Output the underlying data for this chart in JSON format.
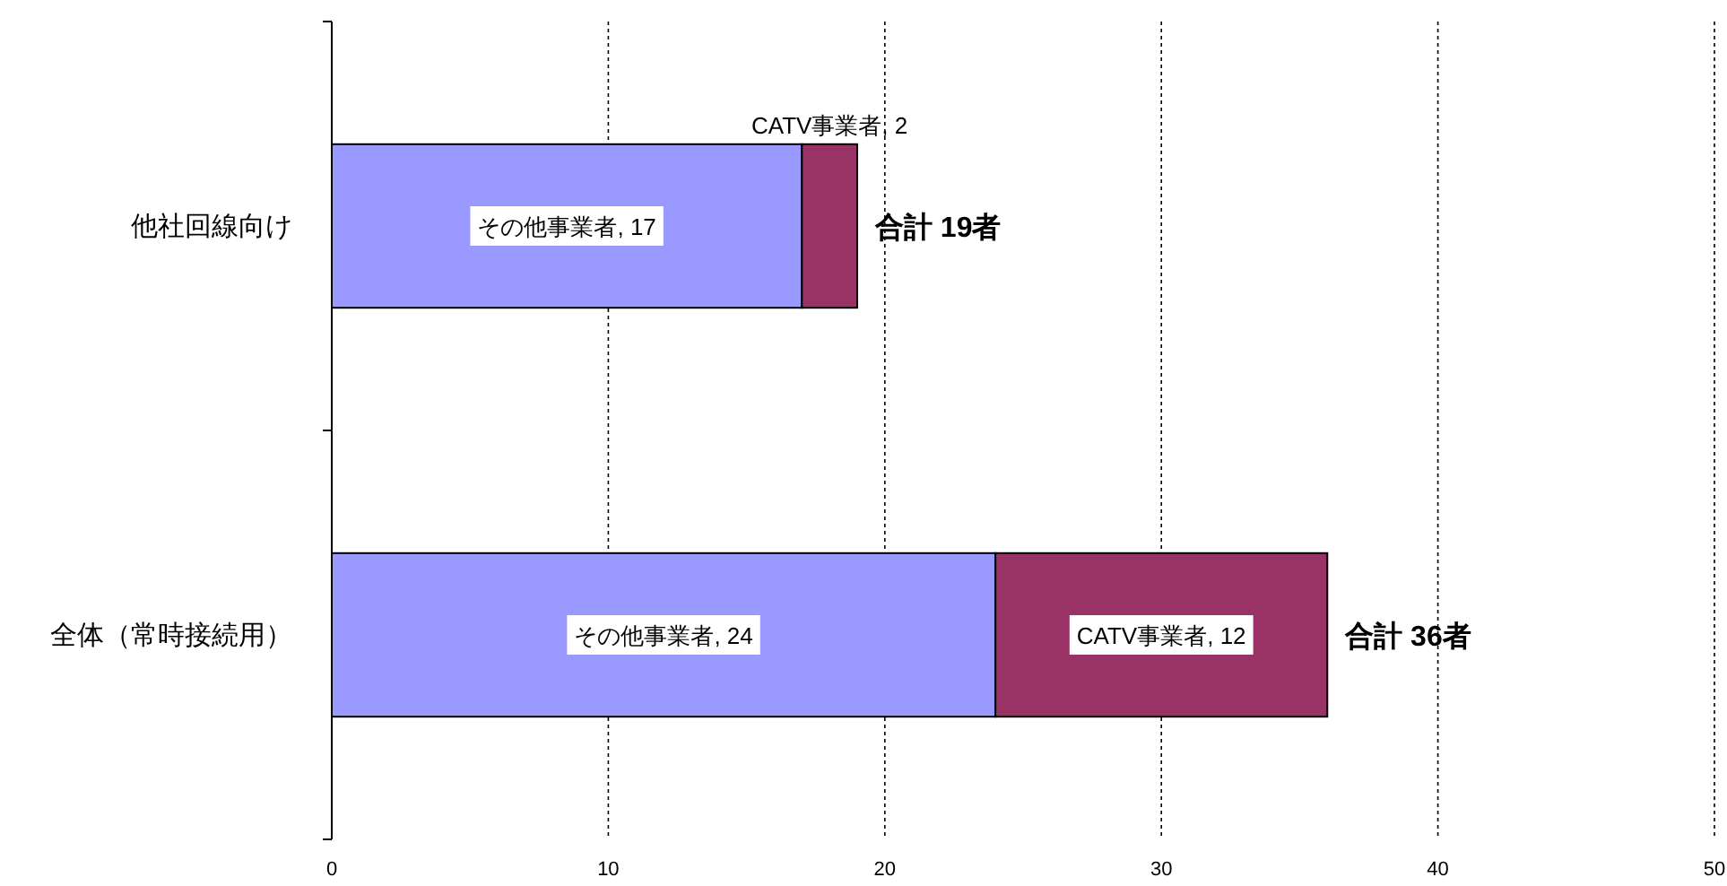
{
  "chart_data": {
    "type": "bar",
    "orientation": "horizontal",
    "stacked": true,
    "categories": [
      "他社回線向け",
      "全体（常時接続用）"
    ],
    "series": [
      {
        "color": "#9999ff",
        "values": [
          17,
          24
        ],
        "value_labels": [
          "その他事業者, 17",
          "その他事業者, 24"
        ]
      },
      {
        "color": "#993366",
        "values": [
          2,
          12
        ],
        "value_labels": [
          "CATV事業者, 2",
          "CATV事業者, 12"
        ]
      }
    ],
    "totals": [
      "合計 19者",
      "合計 36者"
    ],
    "xlim": [
      0,
      50
    ],
    "xticks": [
      0,
      10,
      20,
      30,
      40,
      50
    ],
    "grid": "x"
  }
}
